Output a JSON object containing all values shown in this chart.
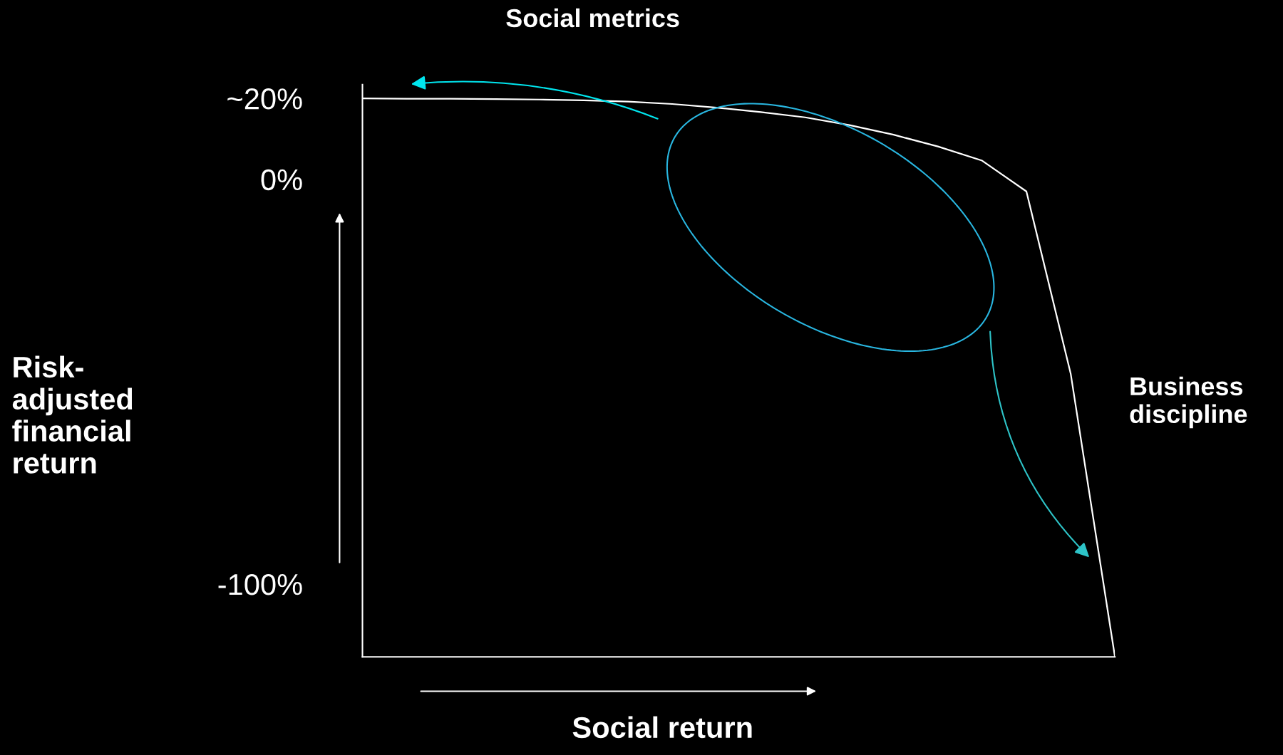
{
  "chart_data": {
    "type": "line",
    "xlabel": "Social return",
    "ylabel": "Risk-\nadjusted\nfinancial\nreturn",
    "categories": [
      null,
      null,
      null,
      null,
      null,
      null,
      null,
      null,
      null,
      null,
      null,
      null,
      null,
      null,
      null,
      null,
      null,
      null
    ],
    "series": [
      {
        "color": "#ffffff",
        "values": [
          20,
          19.9,
          19.9,
          19.8,
          19.7,
          19.5,
          19.2,
          18.6,
          17.7,
          16.6,
          15.3,
          13.4,
          11.0,
          8.1,
          4.6,
          -3,
          -48,
          -118
        ]
      }
    ],
    "ylim": [
      -118,
      23.4
    ],
    "yticks": [
      {
        "value": 20,
        "label": "~20%"
      },
      {
        "value": 0,
        "label": "0%"
      },
      {
        "value": -100,
        "label": "-100%"
      }
    ],
    "tick_labels": "y",
    "grid": false,
    "legend": false,
    "marker": "none",
    "line_style": "solid",
    "annotations": [
      "Social metrics",
      "Business\ndiscipline"
    ]
  }
}
